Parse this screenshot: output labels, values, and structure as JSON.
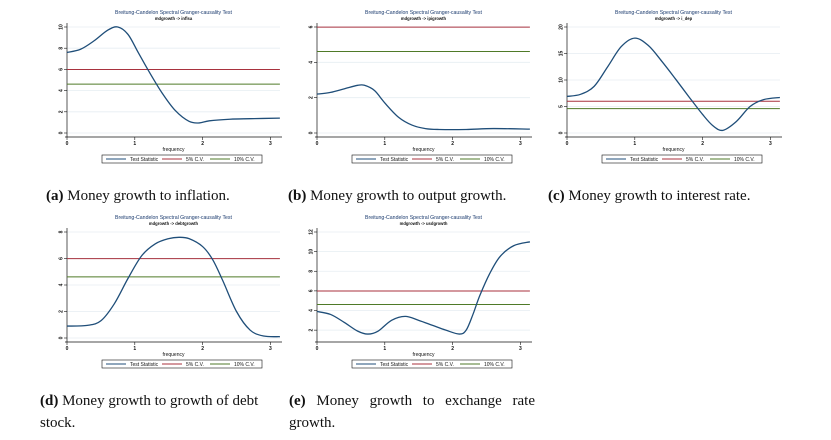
{
  "figure": {
    "panels": [
      {
        "label": "(a)",
        "caption": "Money growth to inflation."
      },
      {
        "label": "(b)",
        "caption": "Money growth to output growth."
      },
      {
        "label": "(c)",
        "caption": "Money growth to interest rate."
      },
      {
        "label": "(d)",
        "caption": "Money growth to growth of debt stock."
      },
      {
        "label": "(e)",
        "caption": "Money growth to exchange rate growth."
      }
    ]
  },
  "colors": {
    "test_statistic": "#1f4e79",
    "cv5": "#a8323e",
    "cv10": "#4f7a28"
  },
  "chart_data": [
    {
      "type": "line",
      "title": "Breitung-Candelon Spectral Granger-causality Test",
      "subtitle": "mdgrowth -> inflsa",
      "xlabel": "frequency",
      "ylabel": "",
      "xlim": [
        0,
        3.14159
      ],
      "ylim": [
        0,
        10
      ],
      "xticks": [
        0,
        1,
        2,
        3
      ],
      "yticks": [
        0,
        2,
        4,
        6,
        8,
        10
      ],
      "legend": [
        "Test Statistic",
        "5% C.V.",
        "10% C.V."
      ],
      "legend_position": "bottom",
      "series": [
        {
          "name": "Test Statistic",
          "x": [
            0,
            0.2,
            0.4,
            0.6,
            0.75,
            0.9,
            1.05,
            1.2,
            1.4,
            1.6,
            1.8,
            1.95,
            2.1,
            2.4,
            2.7,
            3.14
          ],
          "values": [
            7.6,
            7.9,
            8.7,
            9.7,
            10,
            9.3,
            7.6,
            5.9,
            3.8,
            2.1,
            1.1,
            0.95,
            1.15,
            1.3,
            1.35,
            1.4
          ]
        },
        {
          "name": "5% C.V.",
          "x": [
            0,
            3.14
          ],
          "values": [
            5.99,
            5.99
          ]
        },
        {
          "name": "10% C.V.",
          "x": [
            0,
            3.14
          ],
          "values": [
            4.61,
            4.61
          ]
        }
      ]
    },
    {
      "type": "line",
      "title": "Breitung-Candelon Spectral Granger-causality Test",
      "subtitle": "mdgrowth -> ipigrowth",
      "xlabel": "frequency",
      "ylabel": "",
      "xlim": [
        0,
        3.14159
      ],
      "ylim": [
        0,
        6
      ],
      "xticks": [
        0,
        1,
        2,
        3
      ],
      "yticks": [
        0,
        2,
        4,
        6
      ],
      "legend": [
        "Test Statistic",
        "5% C.V.",
        "10% C.V."
      ],
      "legend_position": "bottom",
      "series": [
        {
          "name": "Test Statistic",
          "x": [
            0,
            0.2,
            0.4,
            0.6,
            0.7,
            0.85,
            1.0,
            1.2,
            1.4,
            1.6,
            1.8,
            2.2,
            2.6,
            3.14
          ],
          "values": [
            2.2,
            2.3,
            2.5,
            2.7,
            2.7,
            2.4,
            1.7,
            0.9,
            0.45,
            0.25,
            0.2,
            0.2,
            0.25,
            0.22
          ]
        },
        {
          "name": "5% C.V.",
          "x": [
            0,
            3.14
          ],
          "values": [
            5.99,
            5.99
          ]
        },
        {
          "name": "10% C.V.",
          "x": [
            0,
            3.14
          ],
          "values": [
            4.61,
            4.61
          ]
        }
      ]
    },
    {
      "type": "line",
      "title": "Breitung-Candelon Spectral Granger-causality Test",
      "subtitle": "mdgrowth -> i_dep",
      "xlabel": "frequency",
      "ylabel": "",
      "xlim": [
        0,
        3.14159
      ],
      "ylim": [
        0,
        20
      ],
      "xticks": [
        0,
        1,
        2,
        3
      ],
      "yticks": [
        0,
        5,
        10,
        15,
        20
      ],
      "legend": [
        "Test Statistic",
        "5% C.V.",
        "10% C.V."
      ],
      "legend_position": "bottom",
      "series": [
        {
          "name": "Test Statistic",
          "x": [
            0,
            0.2,
            0.4,
            0.6,
            0.8,
            1.0,
            1.2,
            1.4,
            1.6,
            1.8,
            2.0,
            2.15,
            2.3,
            2.5,
            2.7,
            2.9,
            3.14
          ],
          "values": [
            6.9,
            7.3,
            8.8,
            12.5,
            16.3,
            17.9,
            16.5,
            13.5,
            10.2,
            6.8,
            3.5,
            1.4,
            0.5,
            2.2,
            5.0,
            6.3,
            6.7
          ]
        },
        {
          "name": "5% C.V.",
          "x": [
            0,
            3.14
          ],
          "values": [
            5.99,
            5.99
          ]
        },
        {
          "name": "10% C.V.",
          "x": [
            0,
            3.14
          ],
          "values": [
            4.61,
            4.61
          ]
        }
      ]
    },
    {
      "type": "line",
      "title": "Breitung-Candelon Spectral Granger-causality Test",
      "subtitle": "mdgrowth -> debtgrowth",
      "xlabel": "frequency",
      "ylabel": "",
      "xlim": [
        0,
        3.14159
      ],
      "ylim": [
        0,
        8
      ],
      "xticks": [
        0,
        1,
        2,
        3
      ],
      "yticks": [
        0,
        2,
        4,
        6,
        8
      ],
      "legend": [
        "Test Statistic",
        "5% C.V.",
        "10% C.V."
      ],
      "legend_position": "bottom",
      "series": [
        {
          "name": "Test Statistic",
          "x": [
            0,
            0.3,
            0.5,
            0.7,
            0.9,
            1.1,
            1.3,
            1.5,
            1.65,
            1.8,
            2.0,
            2.15,
            2.3,
            2.5,
            2.7,
            2.9,
            3.14
          ],
          "values": [
            0.9,
            0.95,
            1.3,
            2.6,
            4.5,
            6.2,
            7.1,
            7.5,
            7.6,
            7.5,
            6.9,
            5.9,
            4.3,
            2.0,
            0.6,
            0.15,
            0.1
          ]
        },
        {
          "name": "5% C.V.",
          "x": [
            0,
            3.14
          ],
          "values": [
            5.99,
            5.99
          ]
        },
        {
          "name": "10% C.V.",
          "x": [
            0,
            3.14
          ],
          "values": [
            4.61,
            4.61
          ]
        }
      ]
    },
    {
      "type": "line",
      "title": "Breitung-Candelon Spectral Granger-causality Test",
      "subtitle": "mdgrowth -> usdgrowth",
      "xlabel": "frequency",
      "ylabel": "",
      "xlim": [
        0,
        3.14159
      ],
      "ylim": [
        1.2,
        12
      ],
      "xticks": [
        0,
        1,
        2,
        3
      ],
      "yticks": [
        2,
        4,
        6,
        8,
        10,
        12
      ],
      "legend": [
        "Test Statistic",
        "5% C.V.",
        "10% C.V."
      ],
      "legend_position": "bottom",
      "series": [
        {
          "name": "Test Statistic",
          "x": [
            0,
            0.2,
            0.4,
            0.6,
            0.75,
            0.9,
            1.1,
            1.3,
            1.5,
            1.7,
            1.9,
            2.1,
            2.2,
            2.3,
            2.4,
            2.55,
            2.7,
            2.9,
            3.14
          ],
          "values": [
            3.9,
            3.6,
            2.8,
            1.9,
            1.6,
            1.9,
            3.0,
            3.4,
            3.0,
            2.5,
            2.0,
            1.6,
            2.0,
            3.6,
            5.5,
            7.8,
            9.5,
            10.6,
            11.0
          ]
        },
        {
          "name": "5% C.V.",
          "x": [
            0,
            3.14
          ],
          "values": [
            5.99,
            5.99
          ]
        },
        {
          "name": "10% C.V.",
          "x": [
            0,
            3.14
          ],
          "values": [
            4.61,
            4.61
          ]
        }
      ]
    }
  ]
}
